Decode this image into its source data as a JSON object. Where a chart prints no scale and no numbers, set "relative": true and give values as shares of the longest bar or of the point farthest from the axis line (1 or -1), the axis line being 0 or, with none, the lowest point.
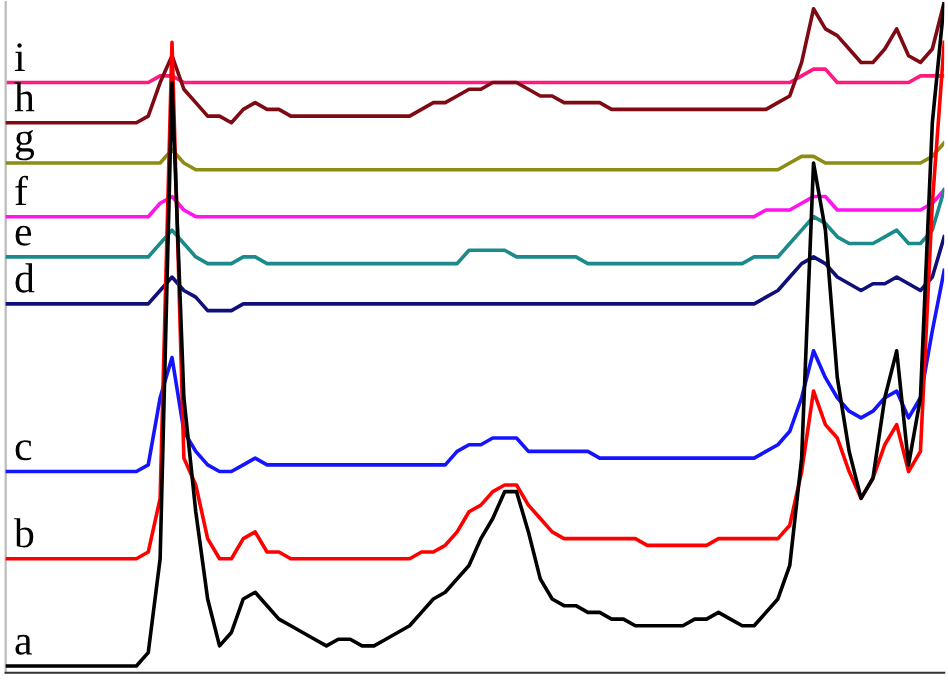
{
  "chart_data": {
    "type": "line",
    "relative": true,
    "categories": [
      null,
      null,
      null,
      null,
      null,
      null,
      null,
      null,
      null,
      null,
      null,
      null,
      null,
      null,
      null,
      null,
      null,
      null,
      null,
      null,
      null,
      null,
      null,
      null,
      null,
      null,
      null,
      null,
      null,
      null,
      null,
      null,
      null,
      null,
      null,
      null,
      null,
      null,
      null,
      null,
      null,
      null,
      null,
      null,
      null,
      null,
      null,
      null,
      null,
      null,
      null,
      null,
      null,
      null,
      null,
      null,
      null,
      null,
      null,
      null,
      null,
      null,
      null,
      null,
      null,
      null,
      null,
      null,
      null,
      null,
      null,
      null,
      null,
      null,
      null,
      null,
      null,
      null,
      null,
      null
    ],
    "series": [
      {
        "name": "a",
        "color": "#000000",
        "values": [
          0.01,
          0.01,
          0.01,
          0.01,
          0.01,
          0.01,
          0.01,
          0.01,
          0.01,
          0.01,
          0.01,
          0.01,
          0.03,
          0.17,
          0.88,
          0.41,
          0.24,
          0.11,
          0.04,
          0.06,
          0.11,
          0.12,
          0.1,
          0.08,
          0.07,
          0.06,
          0.05,
          0.04,
          0.05,
          0.05,
          0.04,
          0.04,
          0.05,
          0.06,
          0.07,
          0.09,
          0.11,
          0.12,
          0.14,
          0.16,
          0.2,
          0.23,
          0.27,
          0.27,
          0.21,
          0.14,
          0.11,
          0.1,
          0.1,
          0.09,
          0.09,
          0.08,
          0.08,
          0.07,
          0.07,
          0.07,
          0.07,
          0.07,
          0.08,
          0.08,
          0.09,
          0.08,
          0.07,
          0.07,
          0.09,
          0.11,
          0.16,
          0.32,
          0.76,
          0.66,
          0.44,
          0.33,
          0.26,
          0.29,
          0.41,
          0.48,
          0.31,
          0.41,
          0.82,
          1.0
        ]
      },
      {
        "name": "b",
        "color": "#ff0000",
        "values": [
          0.17,
          0.17,
          0.17,
          0.17,
          0.17,
          0.17,
          0.17,
          0.17,
          0.17,
          0.17,
          0.17,
          0.17,
          0.18,
          0.26,
          0.94,
          0.32,
          0.28,
          0.2,
          0.17,
          0.17,
          0.2,
          0.21,
          0.18,
          0.18,
          0.17,
          0.17,
          0.17,
          0.17,
          0.17,
          0.17,
          0.17,
          0.17,
          0.17,
          0.17,
          0.17,
          0.18,
          0.18,
          0.19,
          0.21,
          0.24,
          0.25,
          0.27,
          0.28,
          0.28,
          0.25,
          0.23,
          0.21,
          0.2,
          0.2,
          0.2,
          0.2,
          0.2,
          0.2,
          0.2,
          0.19,
          0.19,
          0.19,
          0.19,
          0.19,
          0.19,
          0.2,
          0.2,
          0.2,
          0.2,
          0.2,
          0.2,
          0.22,
          0.3,
          0.42,
          0.37,
          0.35,
          0.3,
          0.26,
          0.29,
          0.34,
          0.37,
          0.3,
          0.33,
          0.7,
          0.94
        ]
      },
      {
        "name": "c",
        "color": "#1414ff",
        "values": [
          0.3,
          0.3,
          0.3,
          0.3,
          0.3,
          0.3,
          0.3,
          0.3,
          0.3,
          0.3,
          0.3,
          0.3,
          0.31,
          0.41,
          0.47,
          0.36,
          0.33,
          0.31,
          0.3,
          0.3,
          0.31,
          0.32,
          0.31,
          0.31,
          0.31,
          0.31,
          0.31,
          0.31,
          0.31,
          0.31,
          0.31,
          0.31,
          0.31,
          0.31,
          0.31,
          0.31,
          0.31,
          0.31,
          0.33,
          0.34,
          0.34,
          0.35,
          0.35,
          0.35,
          0.33,
          0.33,
          0.33,
          0.33,
          0.33,
          0.33,
          0.32,
          0.32,
          0.32,
          0.32,
          0.32,
          0.32,
          0.32,
          0.32,
          0.32,
          0.32,
          0.32,
          0.32,
          0.32,
          0.32,
          0.33,
          0.34,
          0.36,
          0.41,
          0.48,
          0.44,
          0.41,
          0.39,
          0.38,
          0.39,
          0.41,
          0.42,
          0.38,
          0.41,
          0.51,
          0.6
        ]
      },
      {
        "name": "d",
        "color": "#10107a",
        "values": [
          0.55,
          0.55,
          0.55,
          0.55,
          0.55,
          0.55,
          0.55,
          0.55,
          0.55,
          0.55,
          0.55,
          0.55,
          0.55,
          0.57,
          0.59,
          0.57,
          0.56,
          0.54,
          0.54,
          0.54,
          0.55,
          0.55,
          0.55,
          0.55,
          0.55,
          0.55,
          0.55,
          0.55,
          0.55,
          0.55,
          0.55,
          0.55,
          0.55,
          0.55,
          0.55,
          0.55,
          0.55,
          0.55,
          0.55,
          0.55,
          0.55,
          0.55,
          0.55,
          0.55,
          0.55,
          0.55,
          0.55,
          0.55,
          0.55,
          0.55,
          0.55,
          0.55,
          0.55,
          0.55,
          0.55,
          0.55,
          0.55,
          0.55,
          0.55,
          0.55,
          0.55,
          0.55,
          0.55,
          0.55,
          0.56,
          0.57,
          0.59,
          0.61,
          0.62,
          0.61,
          0.59,
          0.58,
          0.57,
          0.58,
          0.58,
          0.59,
          0.58,
          0.57,
          0.59,
          0.65
        ]
      },
      {
        "name": "e",
        "color": "#1a8a8a",
        "values": [
          0.62,
          0.62,
          0.62,
          0.62,
          0.62,
          0.62,
          0.62,
          0.62,
          0.62,
          0.62,
          0.62,
          0.62,
          0.62,
          0.64,
          0.66,
          0.64,
          0.62,
          0.61,
          0.61,
          0.61,
          0.62,
          0.62,
          0.61,
          0.61,
          0.61,
          0.61,
          0.61,
          0.61,
          0.61,
          0.61,
          0.61,
          0.61,
          0.61,
          0.61,
          0.61,
          0.61,
          0.61,
          0.61,
          0.61,
          0.63,
          0.63,
          0.63,
          0.63,
          0.62,
          0.62,
          0.62,
          0.62,
          0.62,
          0.62,
          0.61,
          0.61,
          0.61,
          0.61,
          0.61,
          0.61,
          0.61,
          0.61,
          0.61,
          0.61,
          0.61,
          0.61,
          0.61,
          0.61,
          0.62,
          0.62,
          0.62,
          0.64,
          0.66,
          0.68,
          0.67,
          0.65,
          0.64,
          0.64,
          0.64,
          0.65,
          0.66,
          0.64,
          0.64,
          0.66,
          0.72
        ]
      },
      {
        "name": "f",
        "color": "#ff14f0",
        "values": [
          0.68,
          0.68,
          0.68,
          0.68,
          0.68,
          0.68,
          0.68,
          0.68,
          0.68,
          0.68,
          0.68,
          0.68,
          0.68,
          0.7,
          0.71,
          0.69,
          0.68,
          0.68,
          0.68,
          0.68,
          0.68,
          0.68,
          0.68,
          0.68,
          0.68,
          0.68,
          0.68,
          0.68,
          0.68,
          0.68,
          0.68,
          0.68,
          0.68,
          0.68,
          0.68,
          0.68,
          0.68,
          0.68,
          0.68,
          0.68,
          0.68,
          0.68,
          0.68,
          0.68,
          0.68,
          0.68,
          0.68,
          0.68,
          0.68,
          0.68,
          0.68,
          0.68,
          0.68,
          0.68,
          0.68,
          0.68,
          0.68,
          0.68,
          0.68,
          0.68,
          0.68,
          0.68,
          0.68,
          0.68,
          0.69,
          0.69,
          0.69,
          0.7,
          0.71,
          0.71,
          0.69,
          0.69,
          0.69,
          0.69,
          0.69,
          0.69,
          0.69,
          0.69,
          0.7,
          0.72
        ]
      },
      {
        "name": "g",
        "color": "#8c8c14",
        "values": [
          0.76,
          0.76,
          0.76,
          0.76,
          0.76,
          0.76,
          0.76,
          0.76,
          0.76,
          0.76,
          0.76,
          0.76,
          0.76,
          0.76,
          0.78,
          0.76,
          0.75,
          0.75,
          0.75,
          0.75,
          0.75,
          0.75,
          0.75,
          0.75,
          0.75,
          0.75,
          0.75,
          0.75,
          0.75,
          0.75,
          0.75,
          0.75,
          0.75,
          0.75,
          0.75,
          0.75,
          0.75,
          0.75,
          0.75,
          0.75,
          0.75,
          0.75,
          0.75,
          0.75,
          0.75,
          0.75,
          0.75,
          0.75,
          0.75,
          0.75,
          0.75,
          0.75,
          0.75,
          0.75,
          0.75,
          0.75,
          0.75,
          0.75,
          0.75,
          0.75,
          0.75,
          0.75,
          0.75,
          0.75,
          0.75,
          0.75,
          0.76,
          0.77,
          0.77,
          0.76,
          0.76,
          0.76,
          0.76,
          0.76,
          0.76,
          0.76,
          0.76,
          0.76,
          0.77,
          0.79
        ]
      },
      {
        "name": "h",
        "color": "#800a14",
        "values": [
          0.82,
          0.82,
          0.82,
          0.82,
          0.82,
          0.82,
          0.82,
          0.82,
          0.82,
          0.82,
          0.82,
          0.82,
          0.83,
          0.88,
          0.92,
          0.87,
          0.85,
          0.83,
          0.83,
          0.82,
          0.84,
          0.85,
          0.84,
          0.84,
          0.83,
          0.83,
          0.83,
          0.83,
          0.83,
          0.83,
          0.83,
          0.83,
          0.83,
          0.83,
          0.83,
          0.84,
          0.85,
          0.85,
          0.86,
          0.87,
          0.87,
          0.88,
          0.88,
          0.88,
          0.87,
          0.86,
          0.86,
          0.85,
          0.85,
          0.85,
          0.85,
          0.84,
          0.84,
          0.84,
          0.84,
          0.84,
          0.84,
          0.84,
          0.84,
          0.84,
          0.84,
          0.84,
          0.84,
          0.84,
          0.84,
          0.85,
          0.86,
          0.91,
          0.99,
          0.96,
          0.95,
          0.93,
          0.91,
          0.91,
          0.93,
          0.96,
          0.92,
          0.91,
          0.93,
          1.0
        ]
      },
      {
        "name": "i",
        "color": "#ff1a80",
        "values": [
          0.88,
          0.88,
          0.88,
          0.88,
          0.88,
          0.88,
          0.88,
          0.88,
          0.88,
          0.88,
          0.88,
          0.88,
          0.88,
          0.89,
          0.89,
          0.88,
          0.88,
          0.88,
          0.88,
          0.88,
          0.88,
          0.88,
          0.88,
          0.88,
          0.88,
          0.88,
          0.88,
          0.88,
          0.88,
          0.88,
          0.88,
          0.88,
          0.88,
          0.88,
          0.88,
          0.88,
          0.88,
          0.88,
          0.88,
          0.88,
          0.88,
          0.88,
          0.88,
          0.88,
          0.88,
          0.88,
          0.88,
          0.88,
          0.88,
          0.88,
          0.88,
          0.88,
          0.88,
          0.88,
          0.88,
          0.88,
          0.88,
          0.88,
          0.88,
          0.88,
          0.88,
          0.88,
          0.88,
          0.88,
          0.88,
          0.88,
          0.88,
          0.89,
          0.9,
          0.9,
          0.88,
          0.88,
          0.88,
          0.88,
          0.88,
          0.88,
          0.88,
          0.89,
          0.89,
          0.89
        ]
      }
    ]
  }
}
